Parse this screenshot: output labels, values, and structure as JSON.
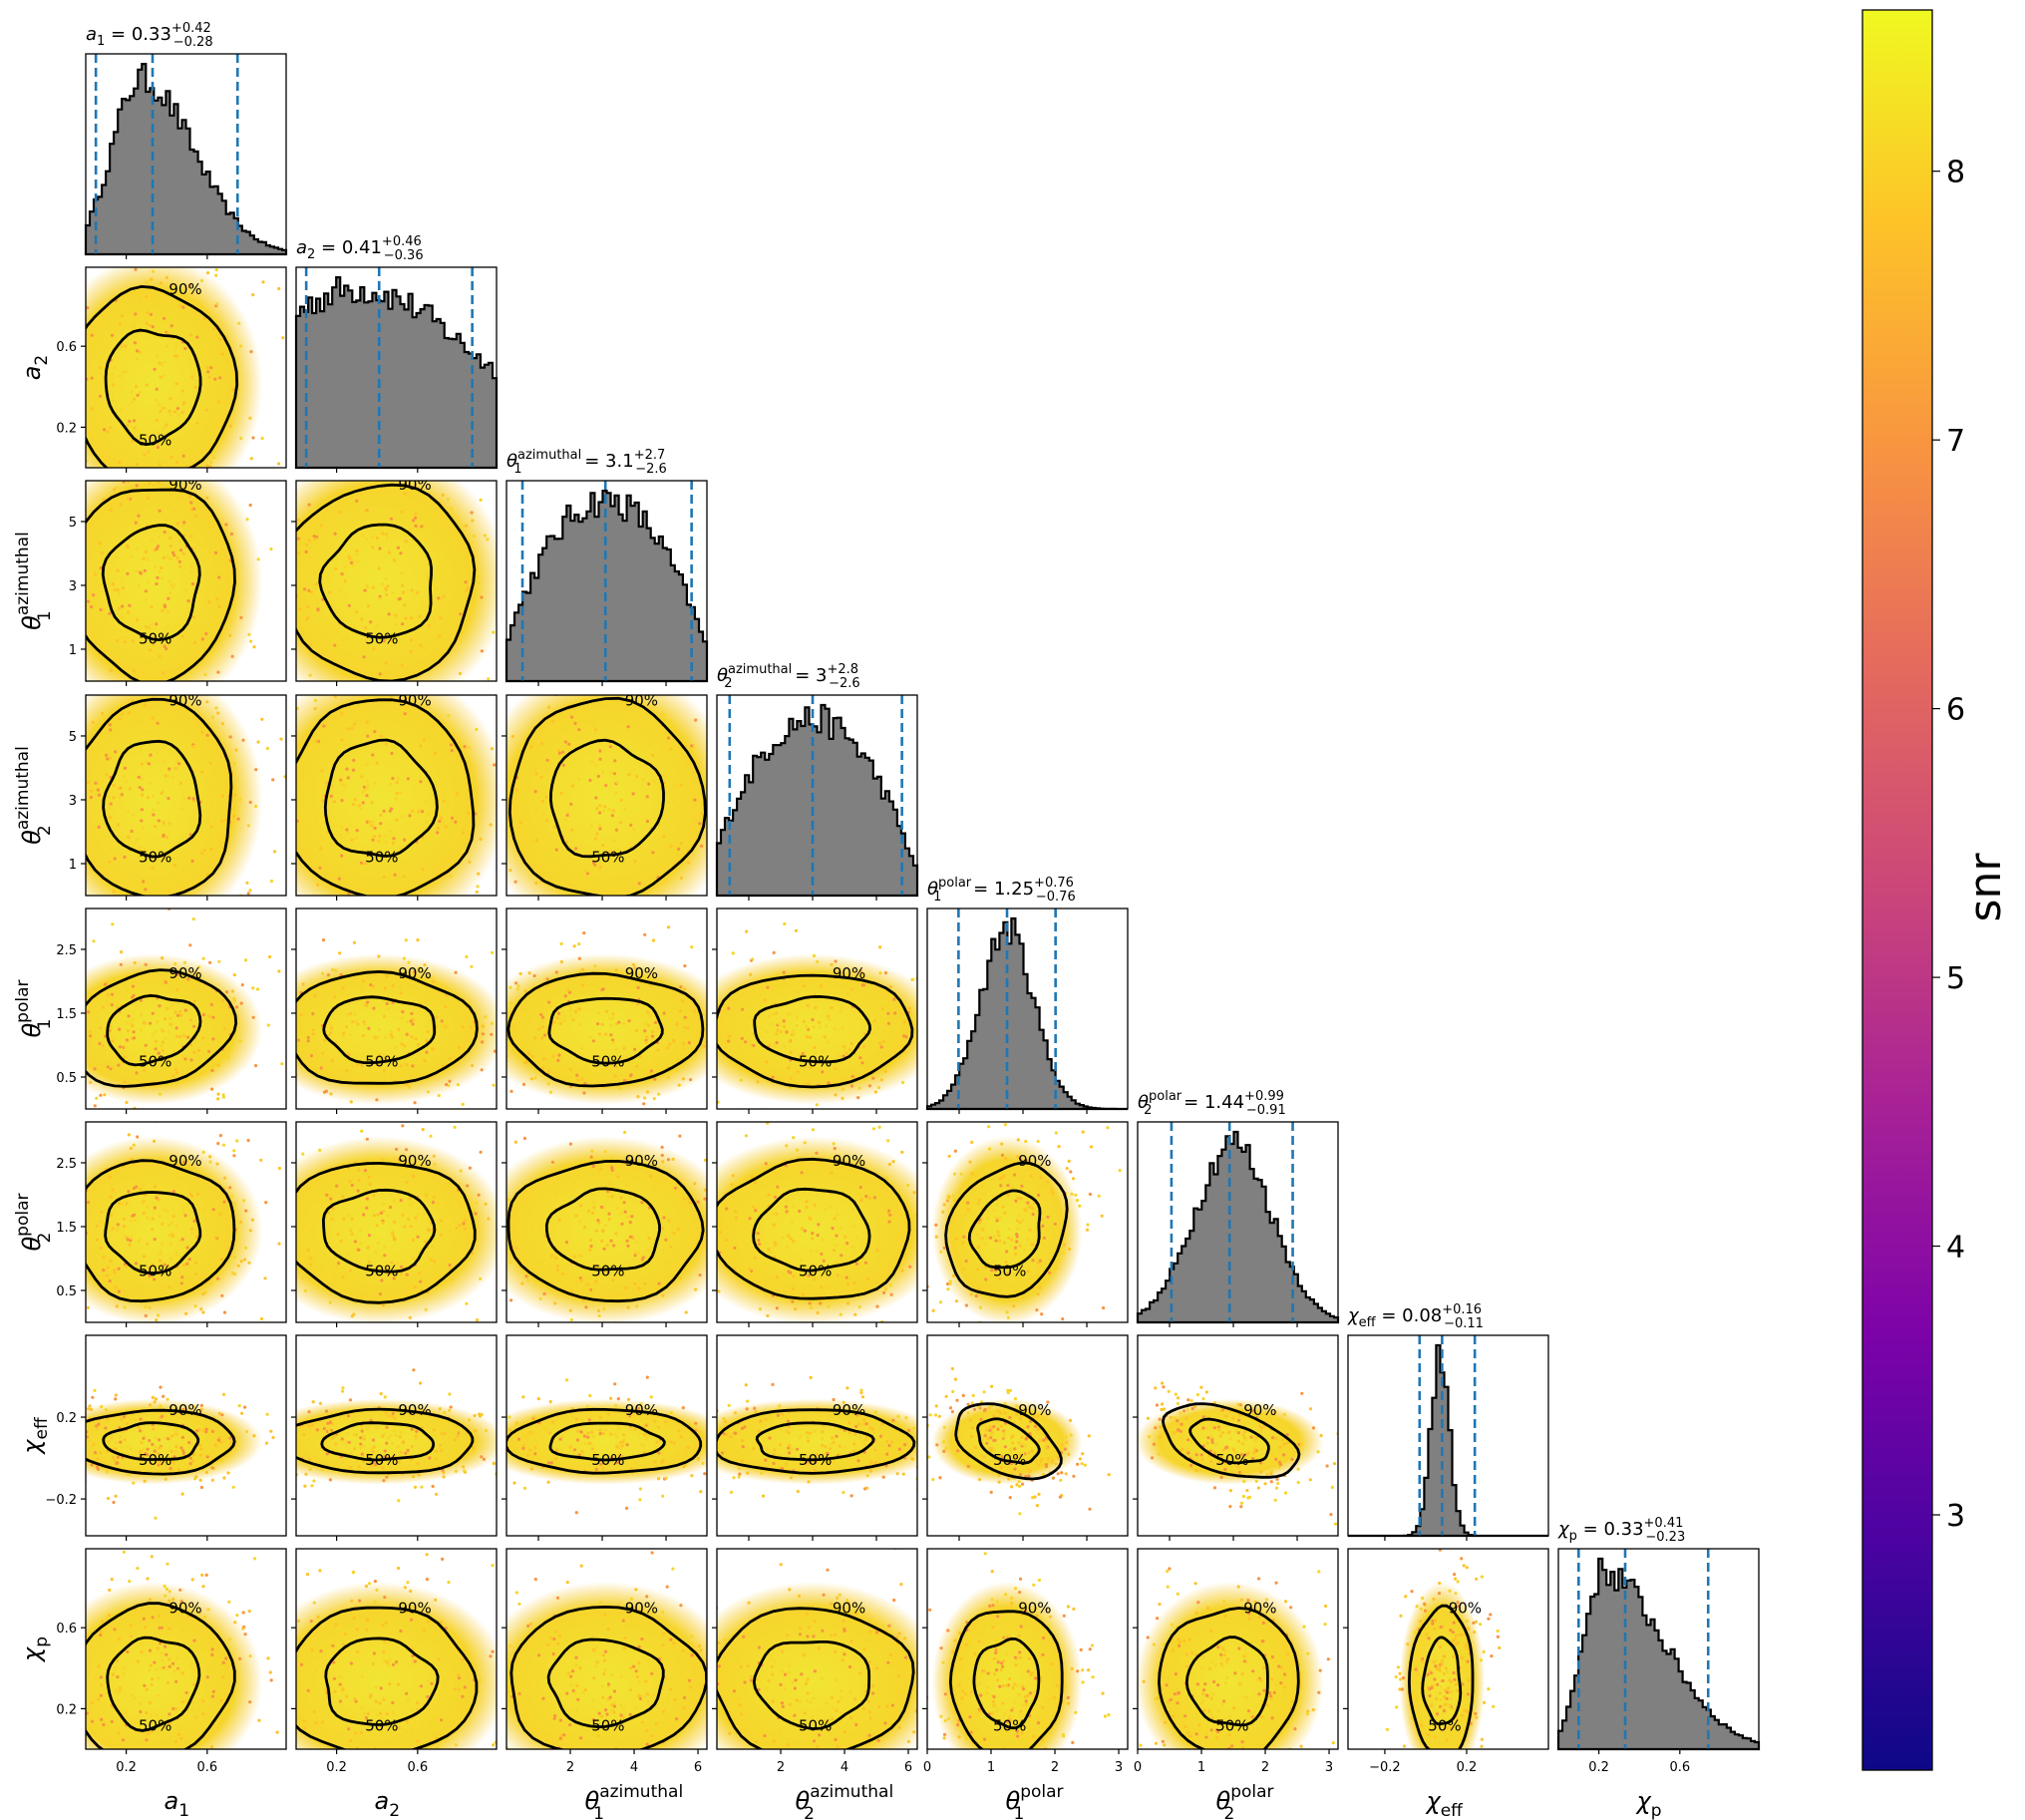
{
  "parameters": [
    {
      "sym": "a",
      "sub": "1",
      "sup": "",
      "label_suffix": "",
      "median": "0.33",
      "plus": "+0.42",
      "minus": "−0.28"
    },
    {
      "sym": "a",
      "sub": "2",
      "sup": "",
      "label_suffix": "",
      "median": "0.41",
      "plus": "+0.46",
      "minus": "−0.36"
    },
    {
      "sym": "θ",
      "sub": "1",
      "sup": "azimuthal",
      "median": "3.1",
      "plus": "+2.7",
      "minus": "−2.6"
    },
    {
      "sym": "θ",
      "sub": "2",
      "sup": "azimuthal",
      "median": "3",
      "plus": "+2.8",
      "minus": "−2.6"
    },
    {
      "sym": "θ",
      "sub": "1",
      "sup": "polar",
      "median": "1.25",
      "plus": "+0.76",
      "minus": "−0.76"
    },
    {
      "sym": "θ",
      "sub": "2",
      "sup": "polar",
      "median": "1.44",
      "plus": "+0.99",
      "minus": "−0.91"
    },
    {
      "sym": "χ",
      "sub": "eff",
      "sup": "",
      "median": "0.08",
      "plus": "+0.16",
      "minus": "−0.11"
    },
    {
      "sym": "χ",
      "sub": "p",
      "sup": "",
      "median": "0.33",
      "plus": "+0.41",
      "minus": "−0.23"
    }
  ],
  "chart_data": {
    "type": "corner",
    "variables": [
      "a_1",
      "a_2",
      "θ_1^azimuthal",
      "θ_2^azimuthal",
      "θ_1^polar",
      "θ_2^polar",
      "χ_eff",
      "χ_p"
    ],
    "ranges": [
      [
        0.0,
        0.99
      ],
      [
        0.0,
        0.99
      ],
      [
        0.0,
        6.28
      ],
      [
        0.0,
        6.28
      ],
      [
        0.0,
        3.14
      ],
      [
        0.0,
        3.14
      ],
      [
        -0.38,
        0.6
      ],
      [
        0.0,
        0.99
      ]
    ],
    "ticks": [
      [
        0.2,
        0.6
      ],
      [
        0.2,
        0.6
      ],
      [
        1,
        3,
        5
      ],
      [
        1,
        3,
        5
      ],
      [
        0.5,
        1.5,
        2.5
      ],
      [
        0.5,
        1.5,
        2.5
      ],
      [
        -0.2,
        0.2
      ],
      [
        0.2,
        0.6
      ]
    ],
    "xticks_bottom": [
      [
        0.2,
        0.6
      ],
      [
        0.2,
        0.6
      ],
      [
        2,
        4,
        6
      ],
      [
        2,
        4,
        6
      ],
      [
        0,
        1,
        2,
        3
      ],
      [
        0,
        1,
        2,
        3
      ],
      [
        -0.2,
        0.2
      ],
      [
        0.2,
        0.6
      ]
    ],
    "xtick_labels_bottom": [
      [
        "0.2",
        "0.6"
      ],
      [
        "0.2",
        "0.6"
      ],
      [
        "2",
        "4",
        "6"
      ],
      [
        "2",
        "4",
        "6"
      ],
      [
        "0",
        "1",
        "2",
        "3"
      ],
      [
        "0",
        "1",
        "2",
        "3"
      ],
      [
        "−0.2",
        "0.2"
      ],
      [
        "0.2",
        "0.6"
      ]
    ],
    "ytick_labels_left": [
      [],
      [
        "0.2",
        "0.6"
      ],
      [
        "1",
        "3",
        "5"
      ],
      [
        "1",
        "3",
        "5"
      ],
      [
        "0.5",
        "1.5",
        "2.5"
      ],
      [
        "0.5",
        "1.5",
        "2.5"
      ],
      [
        "−0.2",
        "0.2"
      ],
      [
        "0.2",
        "0.6"
      ]
    ],
    "quantiles": [
      [
        0.05,
        0.33,
        0.75
      ],
      [
        0.05,
        0.41,
        0.87
      ],
      [
        0.5,
        3.1,
        5.8
      ],
      [
        0.4,
        3.0,
        5.8
      ],
      [
        0.49,
        1.25,
        2.01
      ],
      [
        0.53,
        1.44,
        2.43
      ],
      [
        -0.03,
        0.08,
        0.24
      ],
      [
        0.1,
        0.33,
        0.74
      ]
    ],
    "hist_shape": [
      {
        "kind": "skew",
        "mode": 0.27,
        "left": 0.14,
        "right": 0.26
      },
      {
        "kind": "skewflat",
        "mode": 0.3,
        "left": 0.5,
        "right": 0.55
      },
      {
        "kind": "dome",
        "mode": 3.1,
        "width": 4.0
      },
      {
        "kind": "dome",
        "mode": 3.0,
        "width": 4.0
      },
      {
        "kind": "gauss",
        "mode": 1.25,
        "sigma": 0.42
      },
      {
        "kind": "gauss",
        "mode": 1.5,
        "sigma": 0.6
      },
      {
        "kind": "gauss",
        "mode": 0.07,
        "sigma": 0.045
      },
      {
        "kind": "skew",
        "mode": 0.22,
        "left": 0.1,
        "right": 0.3
      }
    ],
    "contour_levels": [
      "50%",
      "90%"
    ],
    "colorbar": {
      "label": "snr",
      "vmin": 2.05,
      "vmax": 8.6,
      "ticks": [
        3,
        4,
        5,
        6,
        7,
        8
      ],
      "tick_labels": [
        "3",
        "4",
        "5",
        "6",
        "7",
        "8"
      ],
      "colormap": "plasma"
    },
    "quantile_color": "#1f77b4",
    "hist_fill": "#808080",
    "scatter_color": "#f5d525"
  }
}
